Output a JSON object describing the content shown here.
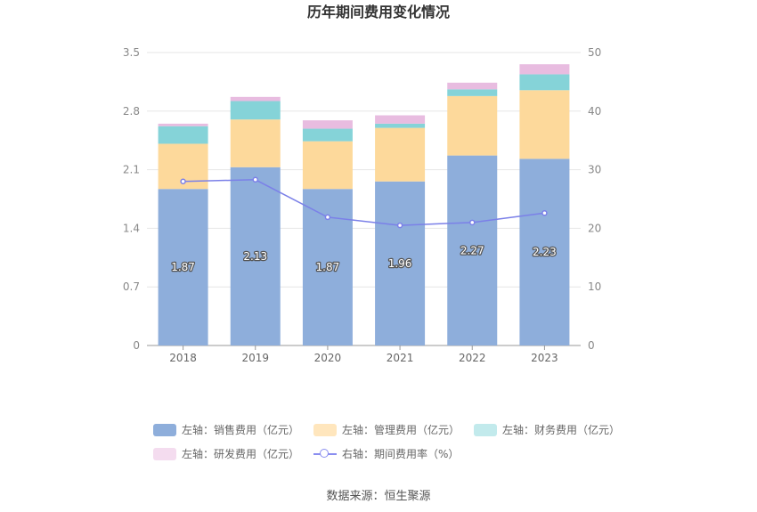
{
  "chart_data": {
    "type": "bar",
    "title": "历年期间费用变化情况",
    "categories": [
      "2018",
      "2019",
      "2020",
      "2021",
      "2022",
      "2023"
    ],
    "y_left": {
      "ylim": [
        0,
        3.5
      ],
      "ticks": [
        "0",
        "0.7",
        "1.4",
        "2.1",
        "2.8",
        "3.5"
      ]
    },
    "y_right": {
      "ylim": [
        0,
        50
      ],
      "ticks": [
        "0",
        "10",
        "20",
        "30",
        "40",
        "50"
      ]
    },
    "series": [
      {
        "name": "左轴：销售费用（亿元）",
        "type": "bar",
        "stack": "left",
        "color": "#8eaedb",
        "values": [
          1.87,
          2.13,
          1.87,
          1.96,
          2.27,
          2.23
        ],
        "labels": [
          "1.87",
          "2.13",
          "1.87",
          "1.96",
          "2.27",
          "2.23"
        ]
      },
      {
        "name": "左轴：管理费用（亿元）",
        "type": "bar",
        "stack": "left",
        "color": "#fdd99b",
        "values": [
          0.54,
          0.57,
          0.57,
          0.64,
          0.71,
          0.82
        ]
      },
      {
        "name": "左轴：财务费用（亿元）",
        "type": "bar",
        "stack": "left",
        "color": "#85d3d8",
        "values": [
          0.21,
          0.22,
          0.15,
          0.05,
          0.08,
          0.19
        ]
      },
      {
        "name": "左轴：研发费用（亿元）",
        "type": "bar",
        "stack": "left",
        "color": "#e8bce0",
        "values": [
          0.03,
          0.05,
          0.1,
          0.1,
          0.08,
          0.12
        ]
      },
      {
        "name": "右轴：期间费用率（%）",
        "type": "line",
        "axis": "right",
        "color": "#7b80e8",
        "values": [
          28.0,
          28.3,
          21.9,
          20.5,
          21.0,
          22.6
        ]
      }
    ],
    "grid": true,
    "legend_position": "bottom",
    "source": "数据来源：恒生聚源"
  }
}
